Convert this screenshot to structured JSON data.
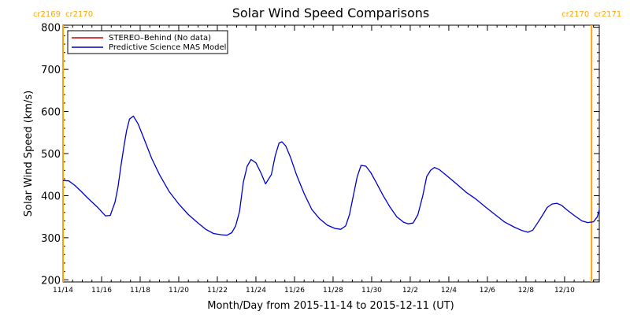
{
  "chart_data": {
    "type": "line",
    "title": "Solar Wind Speed Comparisons",
    "xlabel": "Month/Day from 2015-11-14 to 2015-12-11 (UT)",
    "ylabel": "Solar Wind Speed (km/s)",
    "x_range_days": [
      0,
      27.8
    ],
    "ylim": [
      195,
      805
    ],
    "y_ticks": [
      200,
      300,
      400,
      500,
      600,
      700,
      800
    ],
    "x_ticks": [
      {
        "day": 0,
        "label": "11/14"
      },
      {
        "day": 2,
        "label": "11/16"
      },
      {
        "day": 4,
        "label": "11/18"
      },
      {
        "day": 6,
        "label": "11/20"
      },
      {
        "day": 8,
        "label": "11/22"
      },
      {
        "day": 10,
        "label": "11/24"
      },
      {
        "day": 12,
        "label": "11/26"
      },
      {
        "day": 14,
        "label": "11/28"
      },
      {
        "day": 16,
        "label": "11/30"
      },
      {
        "day": 18,
        "label": "12/2"
      },
      {
        "day": 20,
        "label": "12/4"
      },
      {
        "day": 22,
        "label": "12/6"
      },
      {
        "day": 24,
        "label": "12/8"
      },
      {
        "day": 26,
        "label": "12/10"
      }
    ],
    "carrington_markers": [
      {
        "day": 0.0,
        "label_left": "cr2169",
        "label_right": "cr2170",
        "color": "#FFA500"
      },
      {
        "day": 27.4,
        "label_left": "cr2170",
        "label_right": "cr2171",
        "color": "#FFA500"
      }
    ],
    "legend_position": "top-left",
    "series": [
      {
        "name": "STEREO–Behind (No data)",
        "color": "#CC0000",
        "points": []
      },
      {
        "name": "Predictive Science MAS Model",
        "color": "#0000CC",
        "points": [
          [
            0.0,
            436
          ],
          [
            0.3,
            435
          ],
          [
            0.6,
            425
          ],
          [
            0.9,
            412
          ],
          [
            1.2,
            398
          ],
          [
            1.5,
            385
          ],
          [
            1.8,
            372
          ],
          [
            2.0,
            362
          ],
          [
            2.2,
            352
          ],
          [
            2.45,
            353
          ],
          [
            2.7,
            385
          ],
          [
            2.85,
            420
          ],
          [
            3.0,
            470
          ],
          [
            3.15,
            515
          ],
          [
            3.3,
            555
          ],
          [
            3.45,
            582
          ],
          [
            3.65,
            589
          ],
          [
            3.9,
            570
          ],
          [
            4.2,
            535
          ],
          [
            4.6,
            488
          ],
          [
            5.0,
            450
          ],
          [
            5.5,
            410
          ],
          [
            6.0,
            380
          ],
          [
            6.5,
            355
          ],
          [
            7.0,
            335
          ],
          [
            7.4,
            320
          ],
          [
            7.8,
            310
          ],
          [
            8.2,
            307
          ],
          [
            8.5,
            306
          ],
          [
            8.75,
            312
          ],
          [
            8.95,
            328
          ],
          [
            9.15,
            362
          ],
          [
            9.35,
            432
          ],
          [
            9.55,
            470
          ],
          [
            9.75,
            486
          ],
          [
            10.0,
            478
          ],
          [
            10.25,
            455
          ],
          [
            10.5,
            428
          ],
          [
            10.8,
            450
          ],
          [
            11.0,
            495
          ],
          [
            11.2,
            525
          ],
          [
            11.35,
            528
          ],
          [
            11.55,
            518
          ],
          [
            11.8,
            490
          ],
          [
            12.1,
            450
          ],
          [
            12.5,
            405
          ],
          [
            12.9,
            367
          ],
          [
            13.3,
            345
          ],
          [
            13.7,
            330
          ],
          [
            14.1,
            322
          ],
          [
            14.4,
            320
          ],
          [
            14.65,
            328
          ],
          [
            14.85,
            355
          ],
          [
            15.05,
            400
          ],
          [
            15.25,
            445
          ],
          [
            15.45,
            472
          ],
          [
            15.7,
            470
          ],
          [
            15.95,
            455
          ],
          [
            16.25,
            430
          ],
          [
            16.6,
            400
          ],
          [
            16.95,
            373
          ],
          [
            17.3,
            350
          ],
          [
            17.65,
            337
          ],
          [
            17.9,
            333
          ],
          [
            18.15,
            335
          ],
          [
            18.4,
            355
          ],
          [
            18.65,
            400
          ],
          [
            18.85,
            445
          ],
          [
            19.05,
            460
          ],
          [
            19.25,
            467
          ],
          [
            19.5,
            462
          ],
          [
            19.9,
            447
          ],
          [
            20.4,
            428
          ],
          [
            20.9,
            408
          ],
          [
            21.4,
            392
          ],
          [
            21.9,
            373
          ],
          [
            22.4,
            355
          ],
          [
            22.9,
            337
          ],
          [
            23.4,
            325
          ],
          [
            23.8,
            317
          ],
          [
            24.1,
            313
          ],
          [
            24.35,
            318
          ],
          [
            24.6,
            335
          ],
          [
            24.85,
            353
          ],
          [
            25.1,
            372
          ],
          [
            25.35,
            380
          ],
          [
            25.6,
            382
          ],
          [
            25.85,
            377
          ],
          [
            26.1,
            367
          ],
          [
            26.5,
            353
          ],
          [
            26.9,
            340
          ],
          [
            27.2,
            336
          ],
          [
            27.5,
            338
          ],
          [
            27.7,
            350
          ],
          [
            27.8,
            366
          ]
        ]
      }
    ]
  }
}
